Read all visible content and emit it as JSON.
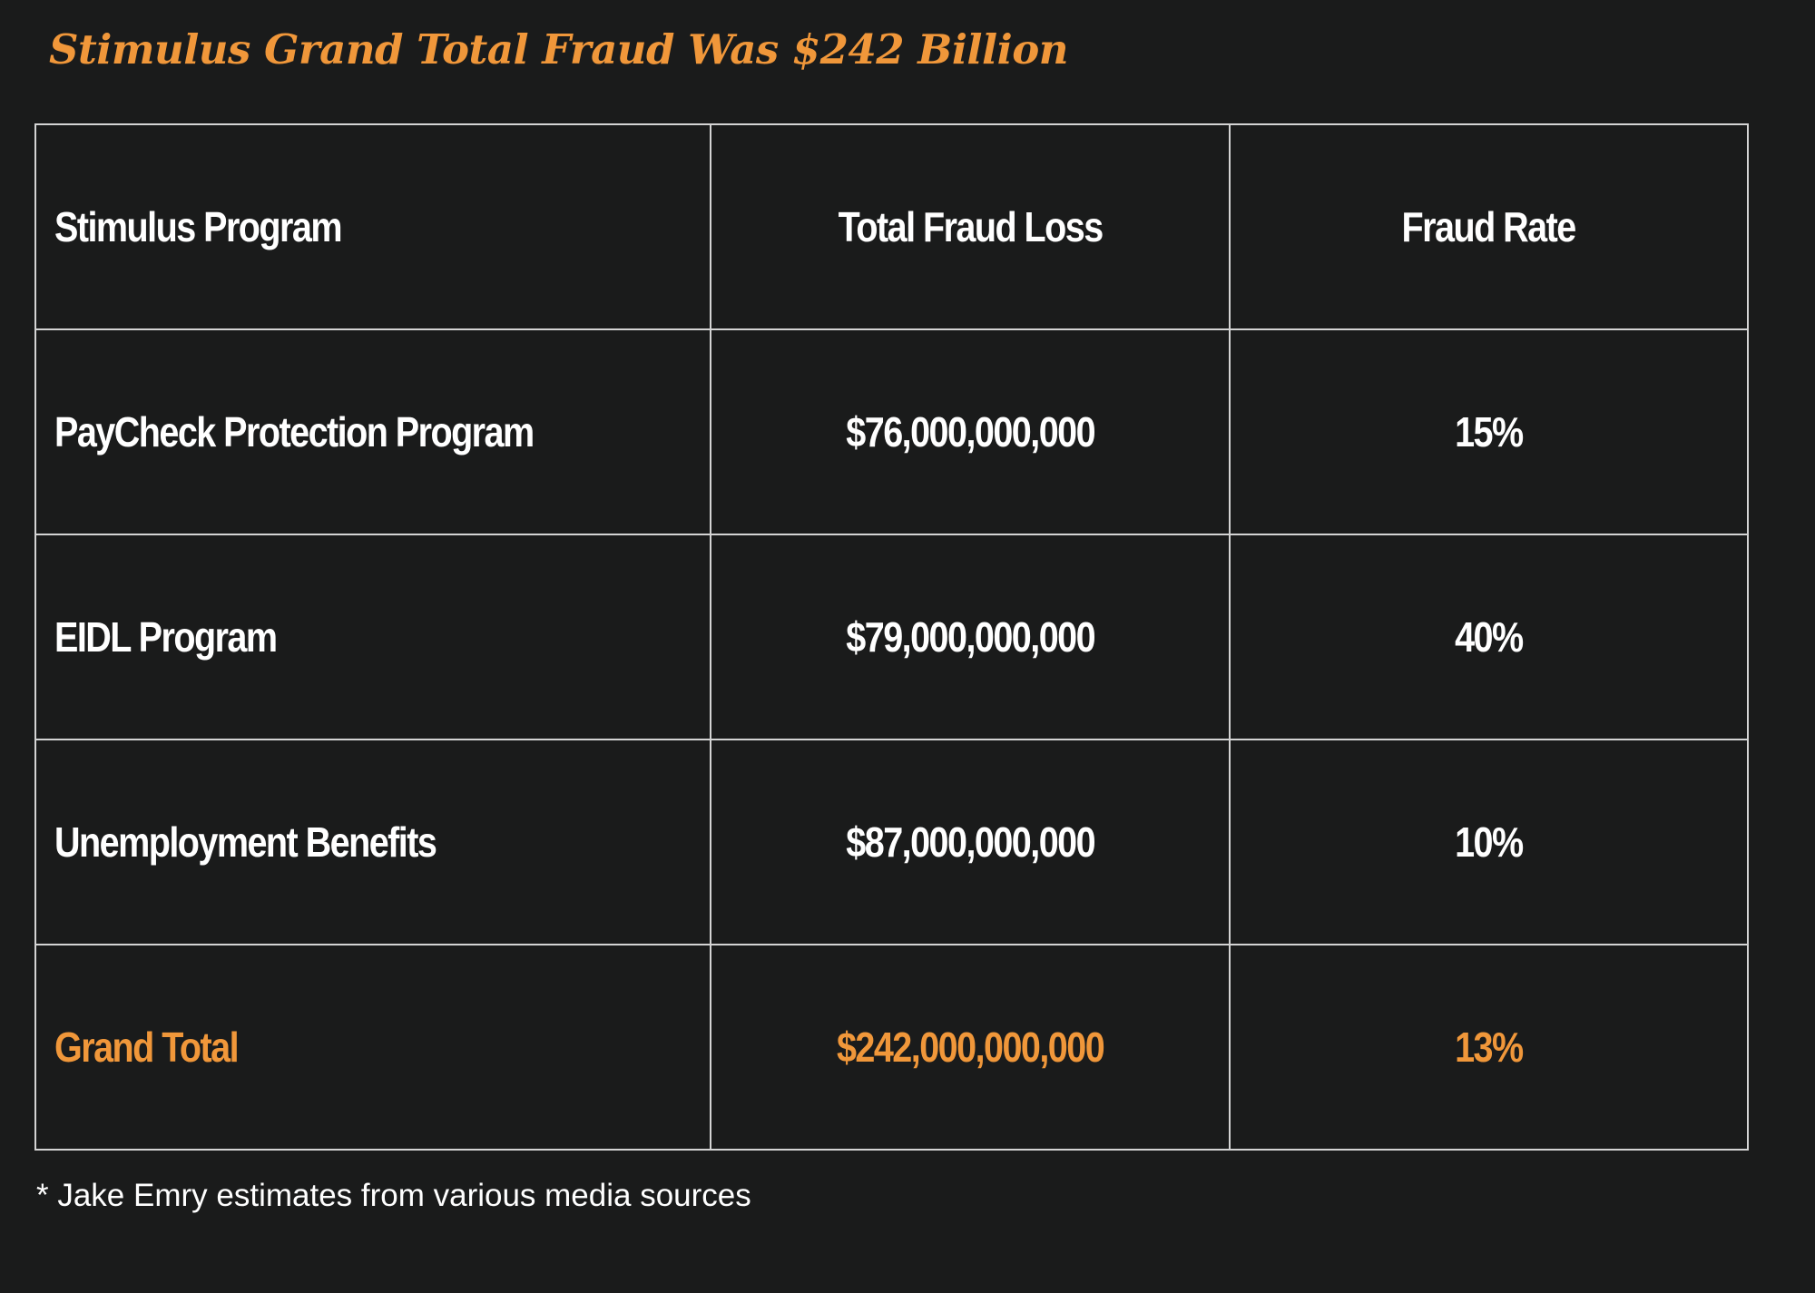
{
  "title": "Stimulus Grand Total Fraud Was $242 Billion",
  "colors": {
    "accent": "#f0973a",
    "background": "#1a1b1b",
    "text": "#ffffff",
    "border": "#d4d4d4"
  },
  "table": {
    "headers": [
      "Stimulus Program",
      "Total Fraud Loss",
      "Fraud Rate"
    ],
    "rows": [
      {
        "program": "PayCheck Protection Program",
        "loss": "$76,000,000,000",
        "rate": "15%"
      },
      {
        "program": "EIDL Program",
        "loss": "$79,000,000,000",
        "rate": "40%"
      },
      {
        "program": "Unemployment Benefits",
        "loss": "$87,000,000,000",
        "rate": "10%"
      }
    ],
    "total": {
      "program": "Grand Total",
      "loss": "$242,000,000,000",
      "rate": "13%"
    }
  },
  "footnote": "* Jake Emry estimates from various media sources"
}
